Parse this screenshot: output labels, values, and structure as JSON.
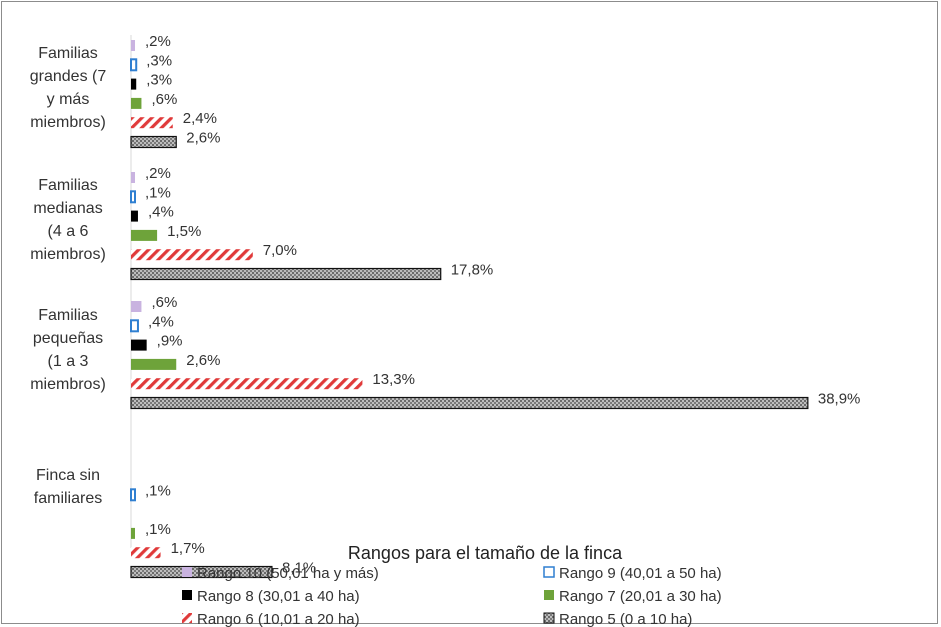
{
  "chart_data": {
    "type": "bar",
    "orientation": "horizontal",
    "xlabel": "Rangos para el tamaño de la finca",
    "xlim": [
      0,
      40
    ],
    "grid": false,
    "legend_position": "bottom",
    "categories": [
      {
        "lines": [
          "Familias",
          "grandes (7",
          "y más",
          "miembros)"
        ]
      },
      {
        "lines": [
          "Familias",
          "medianas",
          "(4 a 6",
          "miembros)"
        ]
      },
      {
        "lines": [
          "Familias",
          "pequeñas",
          "(1 a 3",
          "miembros)"
        ]
      },
      {
        "lines": [
          "Finca sin",
          "familiares"
        ]
      }
    ],
    "series": [
      {
        "name": "Rango 10 (50,01 ha y más)",
        "color": "#c9b3e0",
        "pattern": "solid",
        "values": [
          0.2,
          0.2,
          0.6,
          null
        ],
        "labels": [
          ",2%",
          ",2%",
          ",6%",
          null
        ]
      },
      {
        "name": "Rango 9 (40,01 a 50 ha)",
        "color": "#2f7fd1",
        "pattern": "outline",
        "values": [
          0.3,
          0.1,
          0.4,
          0.1
        ],
        "labels": [
          ",3%",
          ",1%",
          ",4%",
          ",1%"
        ]
      },
      {
        "name": "Rango 8 (30,01 a 40 ha)",
        "color": "#000000",
        "pattern": "solid",
        "values": [
          0.3,
          0.4,
          0.9,
          null
        ],
        "labels": [
          ",3%",
          ",4%",
          ",9%",
          null
        ]
      },
      {
        "name": "Rango 7 (20,01 a 30 ha)",
        "color": "#6ea33a",
        "pattern": "solid",
        "values": [
          0.6,
          1.5,
          2.6,
          0.1
        ],
        "labels": [
          ",6%",
          "1,5%",
          "2,6%",
          ",1%"
        ]
      },
      {
        "name": "Rango 6 (10,01 a 20 ha)",
        "color": "#e03a3a",
        "pattern": "diagonal",
        "values": [
          2.4,
          7.0,
          13.3,
          1.7
        ],
        "labels": [
          "2,4%",
          "7,0%",
          "13,3%",
          "1,7%"
        ]
      },
      {
        "name": "Rango 5 (0 a 10 ha)",
        "color": "#5a5a5a",
        "pattern": "dotted",
        "values": [
          2.6,
          17.8,
          38.9,
          8.1
        ],
        "labels": [
          "2,6%",
          "17,8%",
          "38,9%",
          "8,1%"
        ]
      }
    ]
  }
}
